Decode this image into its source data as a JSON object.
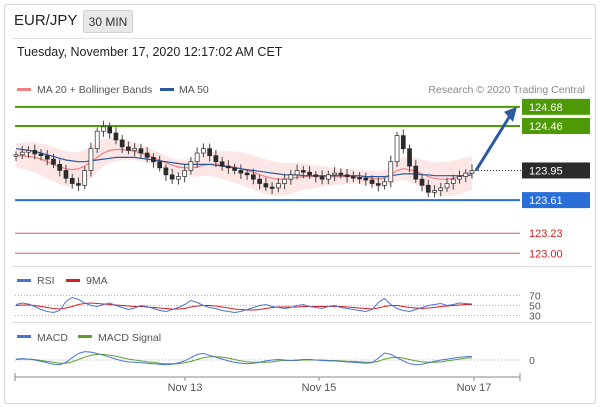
{
  "header": {
    "pair": "EUR/JPY",
    "timeframe": "30 MIN",
    "timestamp": "Tuesday, November 17, 2020 12:17:02 AM CET"
  },
  "chart_data": [
    {
      "type": "candlestick",
      "title": "",
      "legend": [
        {
          "name": "MA 20 + Bollinger Bands",
          "color": "#f08080"
        },
        {
          "name": "MA 50",
          "color": "#2b5a9e"
        }
      ],
      "legend_placement": "top-left",
      "credit": "Research © 2020 Trading Central",
      "ylim": [
        122.9,
        124.85
      ],
      "current_price": "123.95",
      "levels": [
        {
          "value": 124.68,
          "label": "124.68",
          "color": "#4e9a06",
          "kind": "resistance"
        },
        {
          "value": 124.46,
          "label": "124.46",
          "color": "#4e9a06",
          "kind": "resistance"
        },
        {
          "value": 123.61,
          "label": "123.61",
          "color": "#2a6ed8",
          "kind": "support"
        },
        {
          "value": 123.23,
          "label": "123.23",
          "color": "#e45a5a",
          "kind": "target"
        },
        {
          "value": 123.0,
          "label": "123.00",
          "color": "#e45a5a",
          "kind": "target"
        }
      ],
      "forecast_arrow": {
        "from": 123.95,
        "to": 124.68,
        "direction": "up"
      },
      "price_series": [
        124.13,
        124.16,
        124.18,
        124.14,
        124.12,
        124.08,
        124.02,
        123.95,
        123.86,
        123.8,
        123.78,
        123.95,
        124.2,
        124.4,
        124.45,
        124.38,
        124.3,
        124.22,
        124.18,
        124.2,
        124.15,
        124.1,
        124.05,
        123.98,
        123.9,
        123.85,
        123.88,
        123.95,
        124.05,
        124.15,
        124.2,
        124.12,
        124.05,
        124.0,
        123.98,
        123.95,
        123.92,
        123.9,
        123.85,
        123.8,
        123.76,
        123.75,
        123.8,
        123.85,
        123.9,
        123.95,
        123.93,
        123.9,
        123.88,
        123.85,
        123.9,
        123.92,
        123.9,
        123.88,
        123.87,
        123.86,
        123.84,
        123.8,
        123.78,
        123.82,
        124.05,
        124.35,
        124.2,
        124.0,
        123.85,
        123.78,
        123.7,
        123.72,
        123.75,
        123.8,
        123.85,
        123.88,
        123.92,
        123.95
      ],
      "ma20": [
        124.12,
        124.12,
        124.11,
        124.1,
        124.08,
        124.05,
        124.02,
        123.99,
        123.97,
        123.96,
        123.97,
        124.0,
        124.05,
        124.1,
        124.15,
        124.18,
        124.19,
        124.19,
        124.18,
        124.17,
        124.15,
        124.13,
        124.1,
        124.07,
        124.04,
        124.01,
        123.99,
        123.98,
        123.98,
        123.99,
        124.01,
        124.02,
        124.02,
        124.01,
        124.0,
        123.99,
        123.97,
        123.95,
        123.93,
        123.9,
        123.88,
        123.86,
        123.85,
        123.85,
        123.86,
        123.87,
        123.88,
        123.88,
        123.88,
        123.88,
        123.88,
        123.88,
        123.88,
        123.88,
        123.88,
        123.87,
        123.87,
        123.86,
        123.85,
        123.86,
        123.9,
        123.95,
        123.97,
        123.96,
        123.94,
        123.91,
        123.88,
        123.86,
        123.85,
        123.85,
        123.86,
        123.88,
        123.9,
        123.92
      ],
      "ma50": [
        124.2,
        124.19,
        124.18,
        124.17,
        124.15,
        124.13,
        124.11,
        124.09,
        124.07,
        124.06,
        124.05,
        124.05,
        124.06,
        124.07,
        124.08,
        124.09,
        124.1,
        124.1,
        124.1,
        124.1,
        124.09,
        124.08,
        124.07,
        124.06,
        124.05,
        124.04,
        124.03,
        124.02,
        124.02,
        124.02,
        124.02,
        124.02,
        124.01,
        124.0,
        123.99,
        123.98,
        123.97,
        123.96,
        123.95,
        123.94,
        123.93,
        123.92,
        123.91,
        123.9,
        123.9,
        123.9,
        123.89,
        123.89,
        123.89,
        123.89,
        123.89,
        123.89,
        123.89,
        123.89,
        123.89,
        123.89,
        123.88,
        123.88,
        123.88,
        123.88,
        123.89,
        123.9,
        123.91,
        123.91,
        123.91,
        123.9,
        123.9,
        123.89,
        123.89,
        123.89,
        123.89,
        123.89,
        123.89,
        123.9
      ],
      "xticks": [
        "Nov 13",
        "Nov 15",
        "Nov 17"
      ]
    },
    {
      "type": "line",
      "legend": [
        {
          "name": "RSI",
          "color": "#4a74d6"
        },
        {
          "name": "9MA",
          "color": "#d62020"
        }
      ],
      "ylim": [
        25,
        75
      ],
      "yticks": [
        "70",
        "50",
        "30"
      ],
      "rsi": [
        52,
        55,
        53,
        48,
        42,
        38,
        36,
        40,
        58,
        66,
        62,
        55,
        50,
        48,
        52,
        55,
        50,
        46,
        42,
        45,
        50,
        48,
        44,
        40,
        38,
        42,
        46,
        52,
        60,
        56,
        50,
        46,
        44,
        40,
        38,
        36,
        38,
        42,
        46,
        50,
        52,
        48,
        46,
        44,
        46,
        50,
        52,
        48,
        46,
        44,
        48,
        50,
        46,
        44,
        42,
        40,
        38,
        42,
        56,
        64,
        52,
        44,
        40,
        38,
        42,
        46,
        50,
        52,
        54,
        50,
        52,
        55,
        54,
        53
      ],
      "ma9": [
        50,
        51,
        51,
        50,
        48,
        46,
        44,
        43,
        45,
        48,
        52,
        54,
        55,
        54,
        53,
        52,
        51,
        50,
        49,
        48,
        48,
        47,
        46,
        45,
        44,
        43,
        43,
        44,
        47,
        49,
        50,
        50,
        49,
        47,
        45,
        43,
        42,
        41,
        41,
        42,
        44,
        46,
        47,
        47,
        47,
        47,
        48,
        48,
        48,
        48,
        48,
        48,
        48,
        47,
        46,
        45,
        44,
        43,
        45,
        48,
        50,
        50,
        48,
        46,
        45,
        44,
        45,
        46,
        48,
        49,
        50,
        51,
        52,
        52
      ]
    },
    {
      "type": "line",
      "legend": [
        {
          "name": "MACD",
          "color": "#4a74d6"
        },
        {
          "name": "MACD Signal",
          "color": "#5aa02c"
        }
      ],
      "yticks": [
        "0"
      ],
      "ylim": [
        -0.3,
        0.3
      ],
      "macd": [
        0.02,
        0.03,
        0.02,
        0.0,
        -0.03,
        -0.06,
        -0.09,
        -0.1,
        -0.05,
        0.05,
        0.14,
        0.18,
        0.17,
        0.14,
        0.1,
        0.06,
        0.02,
        -0.02,
        -0.04,
        -0.05,
        -0.06,
        -0.07,
        -0.08,
        -0.09,
        -0.1,
        -0.09,
        -0.06,
        -0.02,
        0.05,
        0.12,
        0.14,
        0.1,
        0.06,
        0.02,
        -0.02,
        -0.05,
        -0.07,
        -0.08,
        -0.07,
        -0.05,
        -0.02,
        0.0,
        0.01,
        0.0,
        -0.01,
        0.0,
        0.01,
        0.01,
        0.0,
        -0.01,
        -0.02,
        -0.02,
        -0.03,
        -0.04,
        -0.05,
        -0.06,
        -0.07,
        -0.06,
        0.04,
        0.15,
        0.12,
        0.05,
        -0.02,
        -0.08,
        -0.1,
        -0.09,
        -0.06,
        -0.03,
        0.0,
        0.02,
        0.04,
        0.06,
        0.07,
        0.08
      ],
      "signal": [
        0.01,
        0.02,
        0.02,
        0.01,
        -0.01,
        -0.03,
        -0.05,
        -0.07,
        -0.07,
        -0.04,
        0.01,
        0.06,
        0.1,
        0.12,
        0.12,
        0.1,
        0.08,
        0.05,
        0.02,
        0.0,
        -0.02,
        -0.04,
        -0.05,
        -0.07,
        -0.08,
        -0.08,
        -0.08,
        -0.06,
        -0.03,
        0.01,
        0.05,
        0.07,
        0.07,
        0.06,
        0.04,
        0.01,
        -0.02,
        -0.04,
        -0.05,
        -0.05,
        -0.05,
        -0.04,
        -0.02,
        -0.01,
        -0.01,
        -0.01,
        0.0,
        0.0,
        0.0,
        0.0,
        -0.01,
        -0.01,
        -0.02,
        -0.03,
        -0.03,
        -0.04,
        -0.05,
        -0.05,
        -0.03,
        0.02,
        0.05,
        0.06,
        0.04,
        0.01,
        -0.02,
        -0.04,
        -0.05,
        -0.05,
        -0.04,
        -0.02,
        0.0,
        0.02,
        0.04,
        0.05
      ]
    }
  ]
}
